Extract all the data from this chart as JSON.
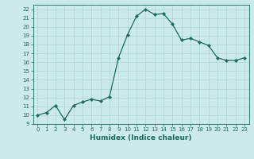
{
  "x": [
    0,
    1,
    2,
    3,
    4,
    5,
    6,
    7,
    8,
    9,
    10,
    11,
    12,
    13,
    14,
    15,
    16,
    17,
    18,
    19,
    20,
    21,
    22,
    23
  ],
  "y": [
    10.0,
    10.3,
    11.1,
    9.5,
    11.1,
    11.5,
    11.8,
    11.6,
    12.1,
    16.5,
    19.1,
    21.2,
    22.0,
    21.4,
    21.5,
    20.3,
    18.5,
    18.7,
    18.3,
    17.9,
    16.5,
    16.2,
    16.2,
    16.5
  ],
  "line_color": "#1a6b5a",
  "marker": "D",
  "marker_size": 2.2,
  "bg_color": "#cdeaea",
  "grid_color": "#b0d8d8",
  "xlabel": "Humidex (Indice chaleur)",
  "ylim": [
    9,
    22.5
  ],
  "xlim": [
    -0.5,
    23.5
  ],
  "yticks": [
    9,
    10,
    11,
    12,
    13,
    14,
    15,
    16,
    17,
    18,
    19,
    20,
    21,
    22
  ],
  "xticks": [
    0,
    1,
    2,
    3,
    4,
    5,
    6,
    7,
    8,
    9,
    10,
    11,
    12,
    13,
    14,
    15,
    16,
    17,
    18,
    19,
    20,
    21,
    22,
    23
  ],
  "tick_fontsize": 5.0,
  "xlabel_fontsize": 6.5,
  "tick_color": "#1a6b5a",
  "label_color": "#1a6b5a",
  "spine_color": "#1a6b5a"
}
